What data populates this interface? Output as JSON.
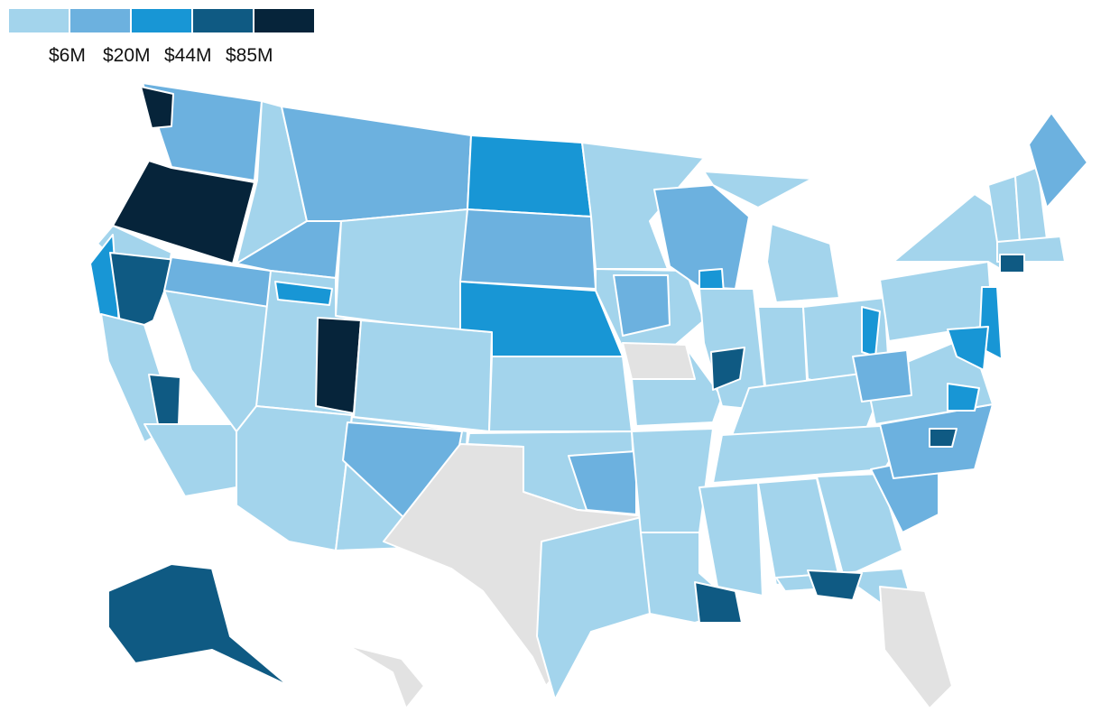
{
  "legend": {
    "bins": [
      {
        "label": "",
        "color": "#a3d4ec"
      },
      {
        "label": "$6M",
        "color": "#6cb1df"
      },
      {
        "label": "$20M",
        "color": "#1896d5"
      },
      {
        "label": "$44M",
        "color": "#0f5a83"
      },
      {
        "label": "$85M",
        "color": "#06243a"
      }
    ]
  },
  "colors": {
    "no_data": "#e2e2e2",
    "border": "#ffffff"
  },
  "regions": [
    {
      "name": "washington",
      "bin": 1
    },
    {
      "name": "washington-seattle",
      "bin": 4
    },
    {
      "name": "oregon",
      "bin": 4
    },
    {
      "name": "california-north",
      "bin": 0
    },
    {
      "name": "california-coast",
      "bin": 2
    },
    {
      "name": "california-bay",
      "bin": 3
    },
    {
      "name": "california-central",
      "bin": 0
    },
    {
      "name": "california-south",
      "bin": 0
    },
    {
      "name": "california-sierra",
      "bin": 3
    },
    {
      "name": "nevada",
      "bin": 0
    },
    {
      "name": "nevada-north",
      "bin": 1
    },
    {
      "name": "idaho",
      "bin": 0
    },
    {
      "name": "idaho-south",
      "bin": 1
    },
    {
      "name": "montana",
      "bin": 1
    },
    {
      "name": "wyoming",
      "bin": 0
    },
    {
      "name": "utah",
      "bin": 0
    },
    {
      "name": "utah-east",
      "bin": 4
    },
    {
      "name": "utah-ne",
      "bin": 2
    },
    {
      "name": "arizona",
      "bin": 0
    },
    {
      "name": "colorado",
      "bin": 0
    },
    {
      "name": "new-mexico",
      "bin": 0
    },
    {
      "name": "new-mexico-ne",
      "bin": 1
    },
    {
      "name": "north-dakota",
      "bin": 2
    },
    {
      "name": "south-dakota",
      "bin": 1
    },
    {
      "name": "nebraska",
      "bin": 2
    },
    {
      "name": "kansas",
      "bin": 0
    },
    {
      "name": "oklahoma",
      "bin": 0
    },
    {
      "name": "oklahoma-east",
      "bin": 1
    },
    {
      "name": "texas",
      "bin": -1
    },
    {
      "name": "texas-east",
      "bin": 0
    },
    {
      "name": "minnesota",
      "bin": 0
    },
    {
      "name": "iowa",
      "bin": 0
    },
    {
      "name": "iowa-east",
      "bin": 1
    },
    {
      "name": "missouri",
      "bin": 0
    },
    {
      "name": "missouri-center",
      "bin": -1
    },
    {
      "name": "arkansas",
      "bin": 0
    },
    {
      "name": "louisiana",
      "bin": 0
    },
    {
      "name": "louisiana-south",
      "bin": 3
    },
    {
      "name": "wisconsin",
      "bin": 1
    },
    {
      "name": "wisconsin-sw",
      "bin": 2
    },
    {
      "name": "illinois",
      "bin": 0
    },
    {
      "name": "illinois-chicago",
      "bin": 3
    },
    {
      "name": "michigan-lower",
      "bin": 0
    },
    {
      "name": "michigan-upper",
      "bin": 0
    },
    {
      "name": "indiana",
      "bin": 0
    },
    {
      "name": "ohio",
      "bin": 0
    },
    {
      "name": "ohio-east",
      "bin": 2
    },
    {
      "name": "kentucky",
      "bin": 0
    },
    {
      "name": "tennessee",
      "bin": 0
    },
    {
      "name": "mississippi",
      "bin": 0
    },
    {
      "name": "alabama",
      "bin": 0
    },
    {
      "name": "georgia",
      "bin": 0
    },
    {
      "name": "florida-north",
      "bin": 0
    },
    {
      "name": "florida-panhandle",
      "bin": 3
    },
    {
      "name": "florida-peninsula",
      "bin": -1
    },
    {
      "name": "south-carolina",
      "bin": 1
    },
    {
      "name": "north-carolina",
      "bin": 1
    },
    {
      "name": "north-carolina-center",
      "bin": 3
    },
    {
      "name": "virginia",
      "bin": 0
    },
    {
      "name": "virginia-north",
      "bin": 2
    },
    {
      "name": "west-virginia",
      "bin": 1
    },
    {
      "name": "pennsylvania",
      "bin": 0
    },
    {
      "name": "new-york",
      "bin": 0
    },
    {
      "name": "new-jersey",
      "bin": 2
    },
    {
      "name": "maryland",
      "bin": 2
    },
    {
      "name": "vermont",
      "bin": 0
    },
    {
      "name": "new-hampshire",
      "bin": 0
    },
    {
      "name": "maine",
      "bin": 1
    },
    {
      "name": "massachusetts",
      "bin": 0
    },
    {
      "name": "connecticut",
      "bin": 3
    },
    {
      "name": "alaska",
      "bin": 3
    },
    {
      "name": "hawaii",
      "bin": -1
    }
  ]
}
